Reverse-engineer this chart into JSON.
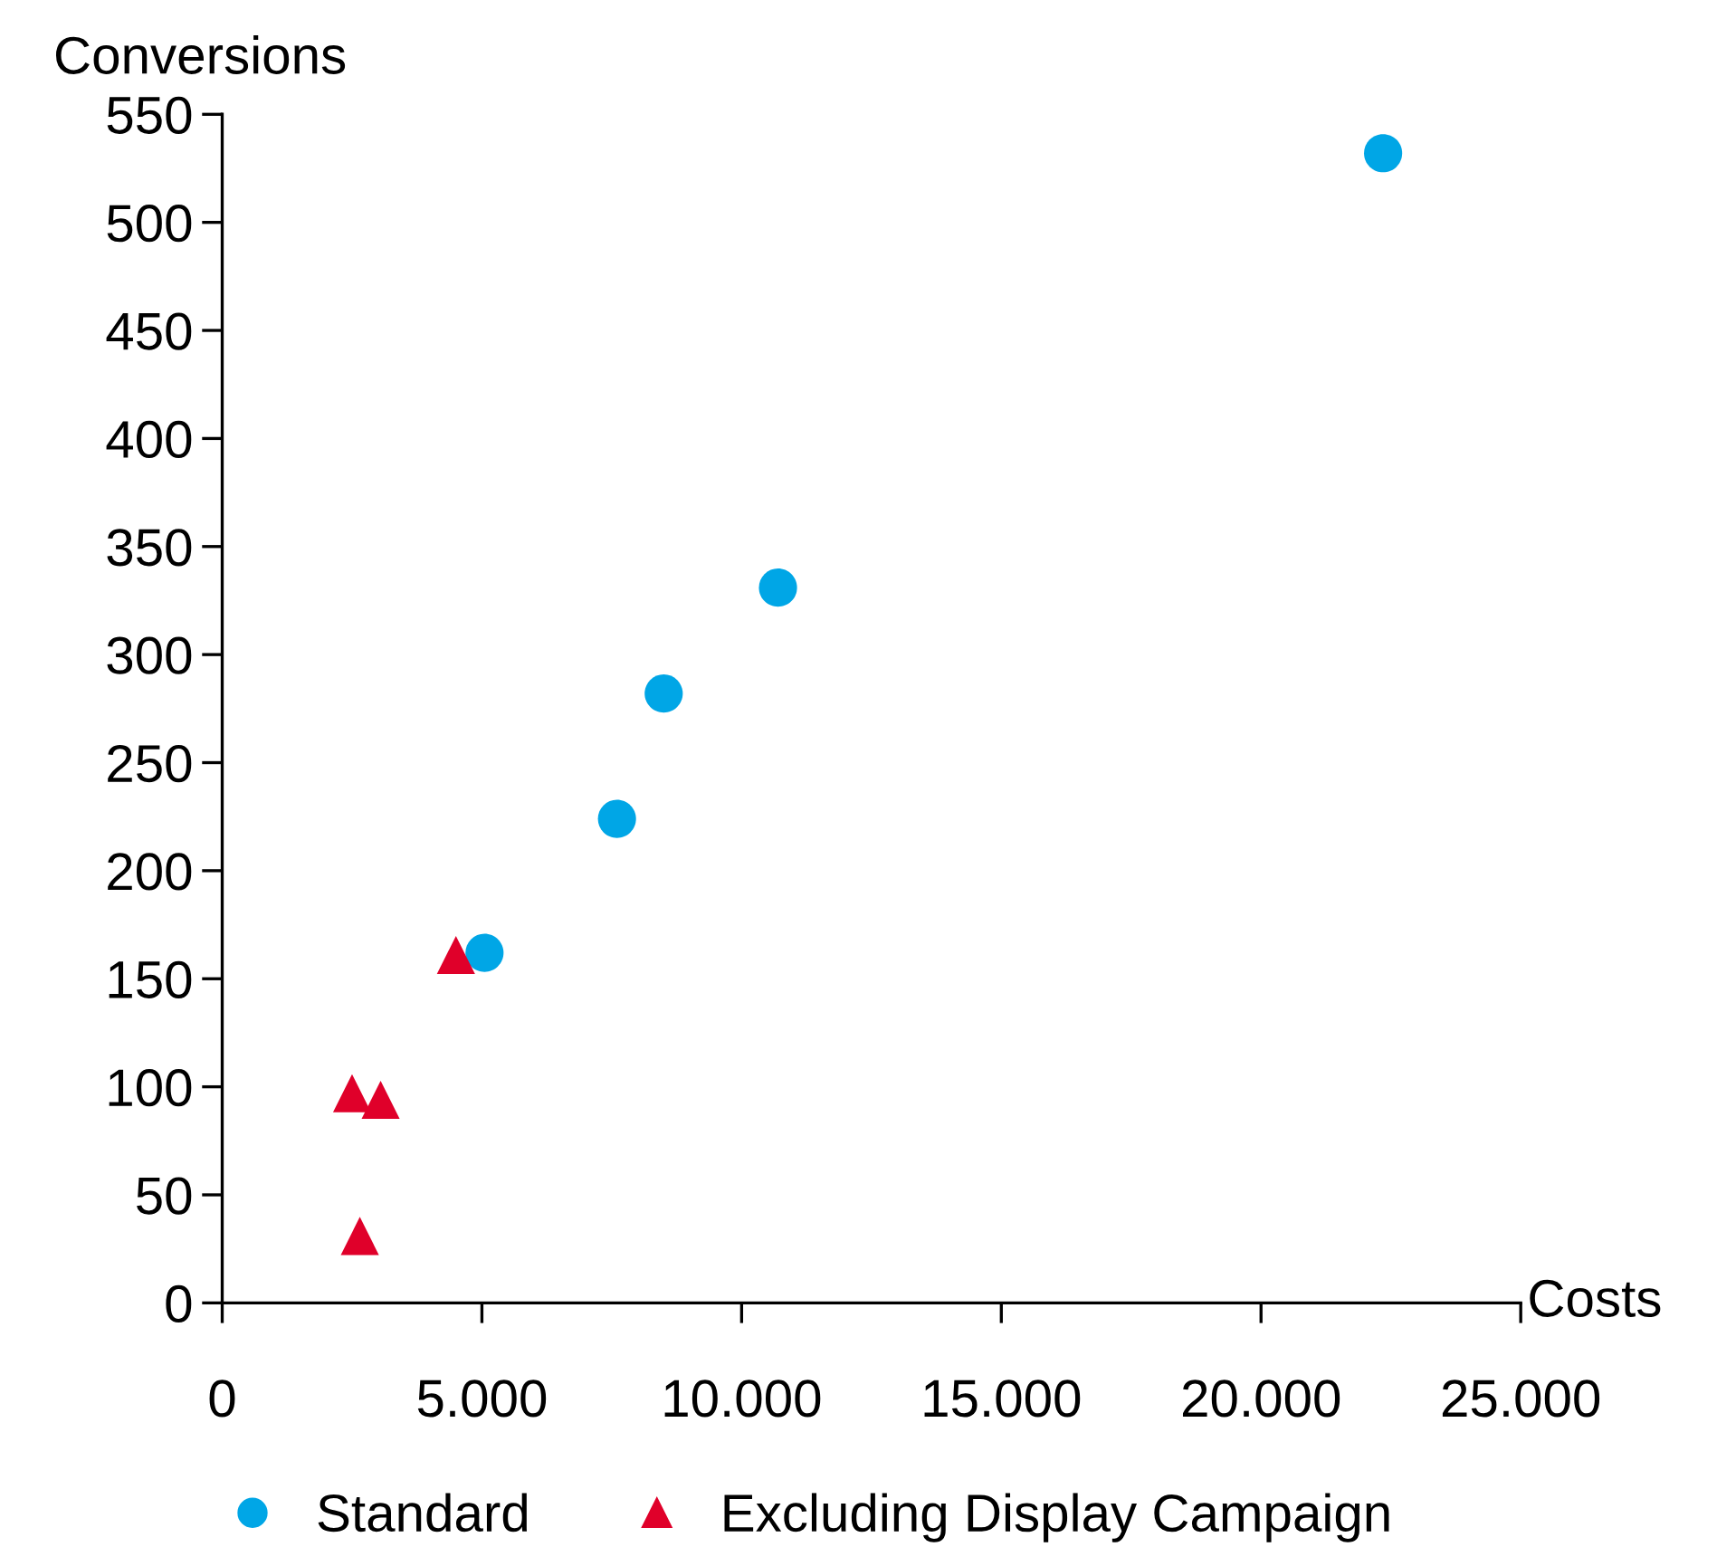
{
  "chart_data": {
    "type": "scatter",
    "xlabel": "Costs",
    "ylabel": "Conversions",
    "series": [
      {
        "name": "Standard",
        "color": "#00a6e6",
        "marker": "circle",
        "x": [
          5050,
          7600,
          8500,
          10700,
          22350
        ],
        "values": [
          162,
          224,
          282,
          331,
          532
        ]
      },
      {
        "name": "Excluding Display Campaign",
        "color": "#e0002a",
        "marker": "triangle",
        "x": [
          4500,
          2500,
          3050,
          2650
        ],
        "values": [
          161,
          97,
          94,
          31
        ]
      }
    ],
    "xlim": [
      0,
      25000
    ],
    "ylim": [
      0,
      550
    ],
    "xticks": [
      0,
      {
        "value": 5000,
        "label": "5.000"
      },
      {
        "value": 10000,
        "label": "10.000"
      },
      {
        "value": 15000,
        "label": "15.000"
      },
      {
        "value": 20000,
        "label": "20.000"
      },
      {
        "value": 25000,
        "label": "25.000"
      }
    ],
    "yticks": [
      0,
      50,
      100,
      150,
      200,
      250,
      300,
      350,
      400,
      450,
      500,
      550
    ],
    "grid": false,
    "legend": "bottom"
  }
}
